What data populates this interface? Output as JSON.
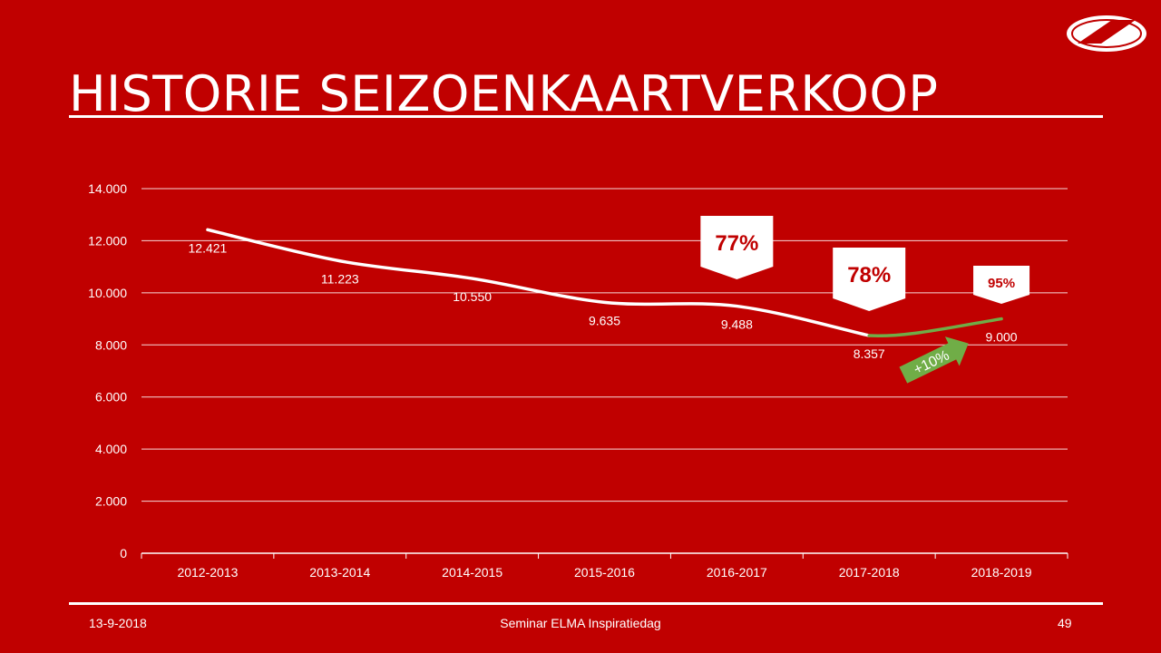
{
  "slide": {
    "title": "HISTORIE SEIZOENKAARTVERKOOP",
    "logo_text": "AZ",
    "footer": {
      "date": "13-9-2018",
      "event": "Seminar ELMA Inspiratiedag",
      "page": "49"
    }
  },
  "colors": {
    "background": "#c00000",
    "line": "#ffffff",
    "growth": "#70ad47",
    "callout_text": "#c00000"
  },
  "chart_data": {
    "type": "line",
    "categories": [
      "2012-2013",
      "2013-2014",
      "2014-2015",
      "2015-2016",
      "2016-2017",
      "2017-2018",
      "2018-2019"
    ],
    "values": [
      12421,
      11223,
      10550,
      9635,
      9488,
      8357,
      9000
    ],
    "value_labels": [
      "12.421",
      "11.223",
      "10.550",
      "9.635",
      "9.488",
      "8.357",
      "9.000"
    ],
    "y_ticks": [
      0,
      2000,
      4000,
      6000,
      8000,
      10000,
      12000,
      14000
    ],
    "y_tick_labels": [
      "0",
      "2.000",
      "4.000",
      "6.000",
      "8.000",
      "10.000",
      "12.000",
      "14.000"
    ],
    "ylim": [
      0,
      14000
    ],
    "grid": true,
    "callouts": [
      {
        "category": "2016-2017",
        "text": "77%"
      },
      {
        "category": "2017-2018",
        "text": "78%"
      },
      {
        "category": "2018-2019",
        "text": "95%"
      }
    ],
    "growth_annotation": {
      "from": "2017-2018",
      "to": "2018-2019",
      "text": "+10%"
    }
  }
}
